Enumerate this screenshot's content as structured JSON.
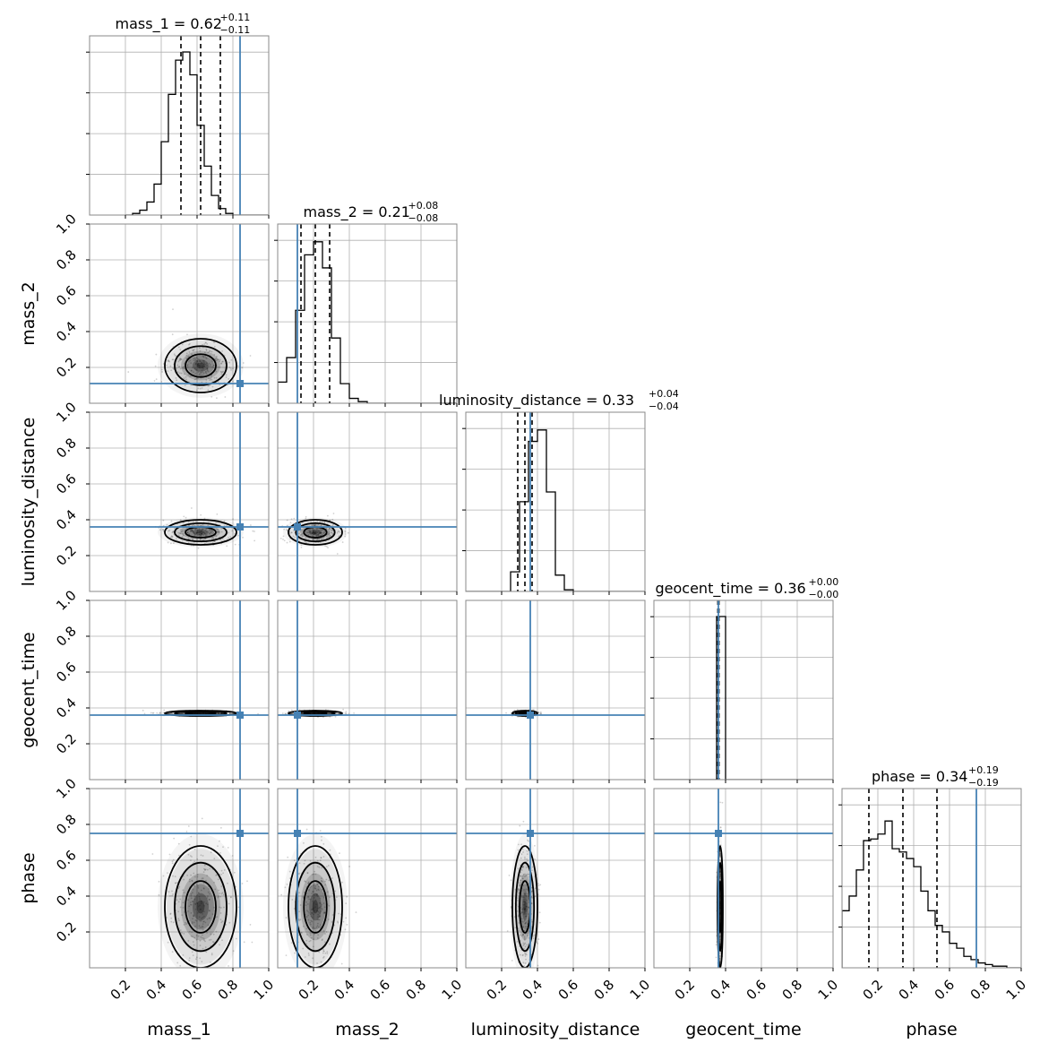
{
  "chart_data": {
    "type": "corner",
    "parameters": [
      "mass_1",
      "mass_2",
      "luminosity_distance",
      "geocent_time",
      "phase"
    ],
    "axis_labels": [
      "mass_1",
      "mass_2",
      "luminosity_distance",
      "geocent_time",
      "phase"
    ],
    "ticks": [
      0.2,
      0.4,
      0.6,
      0.8,
      1.0
    ],
    "tick_labels": [
      "0.2",
      "0.4",
      "0.6",
      "0.8",
      "1.0"
    ],
    "range": [
      0,
      1
    ],
    "grid": true,
    "injected_values": [
      0.84,
      0.11,
      0.36,
      0.36,
      0.75
    ],
    "titles": [
      {
        "name": "mass_1",
        "median": "0.62",
        "plus": "+0.11",
        "minus": "−0.11"
      },
      {
        "name": "mass_2",
        "median": "0.21",
        "plus": "+0.08",
        "minus": "−0.08"
      },
      {
        "name": "luminosity_distance",
        "median": "0.33",
        "plus": "+0.04",
        "minus": "−0.04"
      },
      {
        "name": "geocent_time",
        "median": "0.36",
        "plus": "+0.00",
        "minus": "−0.00"
      },
      {
        "name": "phase",
        "median": "0.34",
        "plus": "+0.19",
        "minus": "−0.19"
      }
    ],
    "marginals": [
      {
        "range": [
          0.2,
          1.0
        ],
        "bins": 20,
        "quantiles": [
          0.51,
          0.62,
          0.73
        ],
        "counts": [
          0.0,
          0.01,
          0.03,
          0.08,
          0.19,
          0.45,
          0.74,
          0.95,
          1.0,
          0.86,
          0.55,
          0.3,
          0.12,
          0.04,
          0.01,
          0.0,
          0.0,
          0.0,
          0.0,
          0.0
        ]
      },
      {
        "range": [
          0.0,
          1.0
        ],
        "bins": 20,
        "quantiles": [
          0.13,
          0.21,
          0.29
        ],
        "counts": [
          0.13,
          0.28,
          0.57,
          0.91,
          0.99,
          0.83,
          0.4,
          0.12,
          0.03,
          0.01,
          0.0,
          0.0,
          0.0,
          0.0,
          0.0,
          0.0,
          0.0,
          0.0,
          0.0,
          0.0
        ]
      },
      {
        "range": [
          0.0,
          1.0
        ],
        "bins": 20,
        "quantiles": [
          0.29,
          0.33,
          0.37
        ],
        "counts": [
          0.0,
          0.0,
          0.0,
          0.0,
          0.0,
          0.12,
          0.55,
          0.92,
          0.99,
          0.61,
          0.1,
          0.01,
          0.0,
          0.0,
          0.0,
          0.0,
          0.0,
          0.0,
          0.0,
          0.0
        ]
      },
      {
        "range": [
          0.0,
          1.0
        ],
        "bins": 20,
        "quantiles": [
          0.357,
          0.36,
          0.363
        ],
        "counts": [
          0.0,
          0.0,
          0.0,
          0.0,
          0.0,
          0.0,
          0.0,
          1.0,
          0.0,
          0.0,
          0.0,
          0.0,
          0.0,
          0.0,
          0.0,
          0.0,
          0.0,
          0.0,
          0.0,
          0.0
        ]
      },
      {
        "range": [
          0.0,
          1.0
        ],
        "bins": 25,
        "quantiles": [
          0.15,
          0.34,
          0.53
        ],
        "counts": [
          0.35,
          0.44,
          0.6,
          0.78,
          0.79,
          0.82,
          0.9,
          0.73,
          0.71,
          0.67,
          0.62,
          0.47,
          0.35,
          0.26,
          0.22,
          0.15,
          0.12,
          0.07,
          0.05,
          0.03,
          0.02,
          0.01,
          0.01,
          0.0,
          0.0
        ]
      }
    ],
    "posterior_spread": [
      {
        "mean": 0.62,
        "sigma": 0.1
      },
      {
        "mean": 0.21,
        "sigma": 0.075
      },
      {
        "mean": 0.33,
        "sigma": 0.035
      },
      {
        "mean": 0.37,
        "sigma": 0.004
      },
      {
        "mean": 0.34,
        "sigma": 0.17
      }
    ],
    "colors": {
      "truth": "#4682b4",
      "contour": "#000000",
      "grid": "#b0b0b0",
      "density": "#000000"
    }
  }
}
